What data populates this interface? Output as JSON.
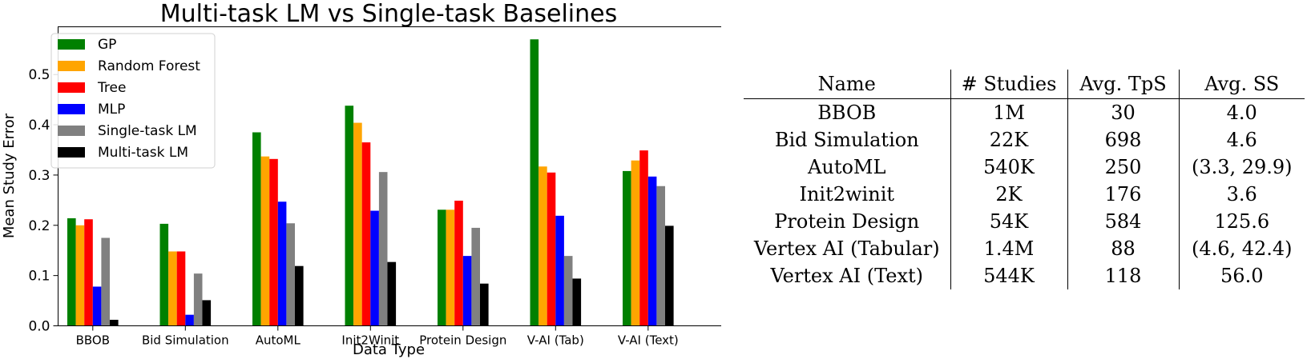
{
  "chart_data": {
    "type": "bar",
    "title": "Multi-task LM vs Single-task Baselines",
    "xlabel": "Data Type",
    "ylabel": "Mean Study Error",
    "ylim": [
      0,
      0.595
    ],
    "yticks": [
      "0.0",
      "0.1",
      "0.2",
      "0.3",
      "0.4",
      "0.5"
    ],
    "legend_position": "top-left",
    "categories": [
      "BBOB",
      "Bid Simulation",
      "AutoML",
      "Init2Winit",
      "Protein Design",
      "V-AI (Tab)",
      "V-AI (Text)"
    ],
    "series": [
      {
        "name": "GP",
        "color": "#008000",
        "values": [
          0.214,
          0.203,
          0.385,
          0.438,
          0.231,
          0.57,
          0.308
        ]
      },
      {
        "name": "Random Forest",
        "color": "#FFA500",
        "values": [
          0.2,
          0.148,
          0.337,
          0.404,
          0.231,
          0.317,
          0.329
        ]
      },
      {
        "name": "Tree",
        "color": "#FF0000",
        "values": [
          0.212,
          0.148,
          0.332,
          0.365,
          0.249,
          0.305,
          0.349
        ]
      },
      {
        "name": "MLP",
        "color": "#0000FF",
        "values": [
          0.078,
          0.022,
          0.247,
          0.229,
          0.139,
          0.219,
          0.297
        ]
      },
      {
        "name": "Single-task LM",
        "color": "#808080",
        "values": [
          0.175,
          0.104,
          0.204,
          0.306,
          0.195,
          0.139,
          0.278
        ]
      },
      {
        "name": "Multi-task LM",
        "color": "#000000",
        "values": [
          0.012,
          0.051,
          0.119,
          0.127,
          0.084,
          0.094,
          0.199
        ]
      }
    ]
  },
  "table": {
    "headers": [
      "Name",
      "# Studies",
      "Avg. TpS",
      "Avg. SS"
    ],
    "rows": [
      [
        "BBOB",
        "1M",
        "30",
        "4.0"
      ],
      [
        "Bid Simulation",
        "22K",
        "698",
        "4.6"
      ],
      [
        "AutoML",
        "540K",
        "250",
        "(3.3, 29.9)"
      ],
      [
        "Init2winit",
        "2K",
        "176",
        "3.6"
      ],
      [
        "Protein Design",
        "54K",
        "584",
        "125.6"
      ],
      [
        "Vertex AI (Tabular)",
        "1.4M",
        "88",
        "(4.6, 42.4)"
      ],
      [
        "Vertex AI (Text)",
        "544K",
        "118",
        "56.0"
      ]
    ]
  }
}
